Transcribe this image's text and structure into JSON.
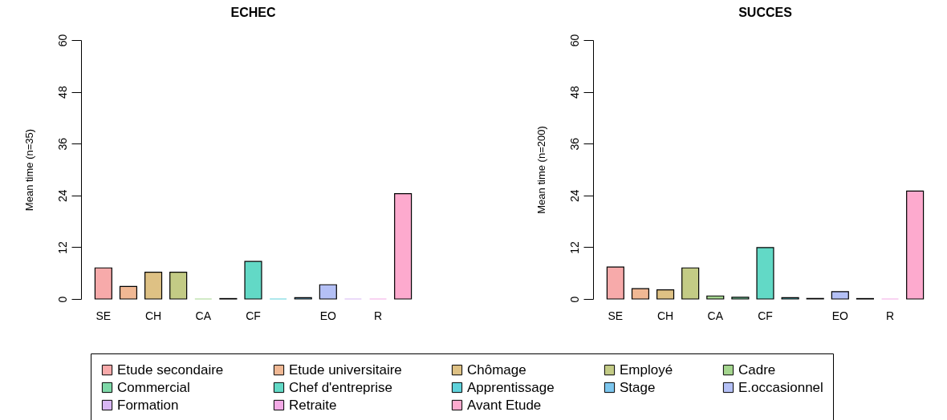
{
  "chart_data": [
    {
      "type": "bar",
      "title": "ECHEC",
      "ylabel": "Mean time (n=35)",
      "categories": [
        "SE",
        null,
        "CH",
        null,
        "CA",
        null,
        "CF",
        null,
        null,
        "EO",
        null,
        "R",
        null
      ],
      "ylim": [
        0,
        60
      ],
      "yticks": [
        0,
        12,
        24,
        36,
        48,
        60
      ],
      "legend": "bottom",
      "series": [
        {
          "name": "Etude secondaire",
          "color": "#f7aaaa",
          "values": [
            7.2,
            null,
            null,
            null,
            null,
            null,
            null,
            null,
            null,
            null,
            null,
            null,
            null
          ]
        },
        {
          "name": "Etude universitaire",
          "color": "#f0b894",
          "values": [
            null,
            2.9,
            null,
            null,
            null,
            null,
            null,
            null,
            null,
            null,
            null,
            null,
            null
          ]
        },
        {
          "name": "Chômage",
          "color": "#dec184",
          "values": [
            null,
            null,
            6.2,
            null,
            null,
            null,
            null,
            null,
            null,
            null,
            null,
            null,
            null
          ]
        },
        {
          "name": "Employé",
          "color": "#c3cb85",
          "values": [
            null,
            null,
            null,
            6.2,
            null,
            null,
            null,
            null,
            null,
            null,
            null,
            null,
            null
          ]
        },
        {
          "name": "Cadre",
          "color": "#a4d58e",
          "values": [
            null,
            null,
            null,
            null,
            0,
            null,
            null,
            null,
            null,
            null,
            null,
            null,
            null
          ]
        },
        {
          "name": "Commercial",
          "color": "#7ed8a8",
          "values": [
            null,
            null,
            null,
            null,
            null,
            0.1,
            null,
            null,
            null,
            null,
            null,
            null,
            null
          ]
        },
        {
          "name": "Chef d'entreprise",
          "color": "#62d9c6",
          "values": [
            null,
            null,
            null,
            null,
            null,
            null,
            8.7,
            null,
            null,
            null,
            null,
            null,
            null
          ]
        },
        {
          "name": "Apprentissage",
          "color": "#5fd2db",
          "values": [
            null,
            null,
            null,
            null,
            null,
            null,
            null,
            0,
            null,
            null,
            null,
            null,
            null
          ]
        },
        {
          "name": "Stage",
          "color": "#7cc6ee",
          "values": [
            null,
            null,
            null,
            null,
            null,
            null,
            null,
            null,
            0.3,
            null,
            null,
            null,
            null
          ]
        },
        {
          "name": "E.occasionnel",
          "color": "#b4c0f6",
          "values": [
            null,
            null,
            null,
            null,
            null,
            null,
            null,
            null,
            null,
            3.3,
            null,
            null,
            null
          ]
        },
        {
          "name": "Formation",
          "color": "#d8b6f4",
          "values": [
            null,
            null,
            null,
            null,
            null,
            null,
            null,
            null,
            null,
            null,
            0,
            null,
            null
          ]
        },
        {
          "name": "Retraite",
          "color": "#f3aae6",
          "values": [
            null,
            null,
            null,
            null,
            null,
            null,
            null,
            null,
            null,
            null,
            null,
            0,
            null
          ]
        },
        {
          "name": "Avant Etude",
          "color": "#fdaace",
          "values": [
            null,
            null,
            null,
            null,
            null,
            null,
            null,
            null,
            null,
            null,
            null,
            null,
            24.4
          ]
        }
      ]
    },
    {
      "type": "bar",
      "title": "SUCCES",
      "ylabel": "Mean time (n=200)",
      "categories": [
        "SE",
        null,
        "CH",
        null,
        "CA",
        null,
        "CF",
        null,
        null,
        "EO",
        null,
        "R",
        null
      ],
      "ylim": [
        0,
        60
      ],
      "yticks": [
        0,
        12,
        24,
        36,
        48,
        60
      ],
      "legend": "bottom",
      "series": [
        {
          "name": "Etude secondaire",
          "color": "#f7aaaa",
          "values": [
            7.4,
            null,
            null,
            null,
            null,
            null,
            null,
            null,
            null,
            null,
            null,
            null,
            null
          ]
        },
        {
          "name": "Etude universitaire",
          "color": "#f0b894",
          "values": [
            null,
            2.4,
            null,
            null,
            null,
            null,
            null,
            null,
            null,
            null,
            null,
            null,
            null
          ]
        },
        {
          "name": "Chômage",
          "color": "#dec184",
          "values": [
            null,
            null,
            2.1,
            null,
            null,
            null,
            null,
            null,
            null,
            null,
            null,
            null,
            null
          ]
        },
        {
          "name": "Employé",
          "color": "#c3cb85",
          "values": [
            null,
            null,
            null,
            7.2,
            null,
            null,
            null,
            null,
            null,
            null,
            null,
            null,
            null
          ]
        },
        {
          "name": "Cadre",
          "color": "#a4d58e",
          "values": [
            null,
            null,
            null,
            null,
            0.7,
            null,
            null,
            null,
            null,
            null,
            null,
            null,
            null
          ]
        },
        {
          "name": "Commercial",
          "color": "#7ed8a8",
          "values": [
            null,
            null,
            null,
            null,
            null,
            0.4,
            null,
            null,
            null,
            null,
            null,
            null,
            null
          ]
        },
        {
          "name": "Chef d'entreprise",
          "color": "#62d9c6",
          "values": [
            null,
            null,
            null,
            null,
            null,
            null,
            11.9,
            null,
            null,
            null,
            null,
            null,
            null
          ]
        },
        {
          "name": "Apprentissage",
          "color": "#5fd2db",
          "values": [
            null,
            null,
            null,
            null,
            null,
            null,
            null,
            0.3,
            null,
            null,
            null,
            null,
            null
          ]
        },
        {
          "name": "Stage",
          "color": "#7cc6ee",
          "values": [
            null,
            null,
            null,
            null,
            null,
            null,
            null,
            null,
            0.1,
            null,
            null,
            null,
            null
          ]
        },
        {
          "name": "E.occasionnel",
          "color": "#b4c0f6",
          "values": [
            null,
            null,
            null,
            null,
            null,
            null,
            null,
            null,
            null,
            1.7,
            null,
            null,
            null
          ]
        },
        {
          "name": "Formation",
          "color": "#d8b6f4",
          "values": [
            null,
            null,
            null,
            null,
            null,
            null,
            null,
            null,
            null,
            null,
            0.1,
            null,
            null
          ]
        },
        {
          "name": "Retraite",
          "color": "#f3aae6",
          "values": [
            null,
            null,
            null,
            null,
            null,
            null,
            null,
            null,
            null,
            null,
            null,
            0,
            null
          ]
        },
        {
          "name": "Avant Etude",
          "color": "#fdaace",
          "values": [
            null,
            null,
            null,
            null,
            null,
            null,
            null,
            null,
            null,
            null,
            null,
            null,
            25
          ]
        }
      ]
    }
  ]
}
